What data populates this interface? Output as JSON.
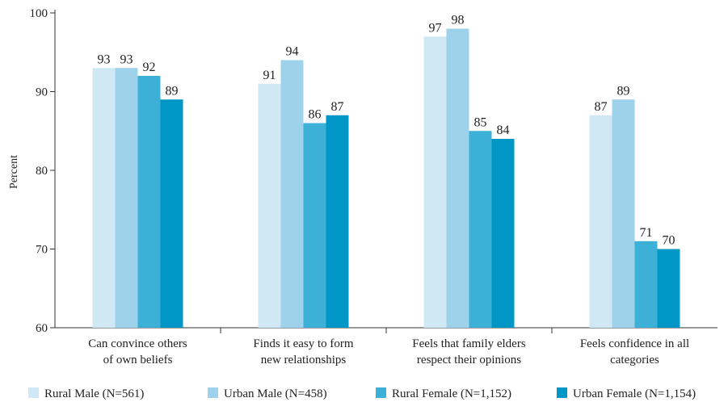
{
  "chart_data": {
    "type": "bar",
    "ylabel": "Percent",
    "ylim": [
      60,
      100
    ],
    "yticks": [
      60,
      70,
      80,
      90,
      100
    ],
    "legend_position": "bottom",
    "grid": false,
    "categories": [
      [
        "Can convince others",
        "of own beliefs"
      ],
      [
        "Finds it easy to form",
        "new relationships"
      ],
      [
        "Feels that family elders",
        "respect their opinions"
      ],
      [
        "Feels confidence in all",
        "categories"
      ]
    ],
    "series": [
      {
        "name": "Rural Male (N=561)",
        "color": "#cfe8f4",
        "values": [
          93,
          91,
          97,
          87
        ]
      },
      {
        "name": "Urban Male (N=458)",
        "color": "#9ed1ea",
        "values": [
          93,
          94,
          98,
          89
        ]
      },
      {
        "name": "Rural Female (N=1,152)",
        "color": "#3db0d8",
        "values": [
          92,
          86,
          85,
          71
        ]
      },
      {
        "name": "Urban Female (N=1,154)",
        "color": "#0096c6",
        "values": [
          89,
          87,
          84,
          70
        ]
      }
    ]
  }
}
